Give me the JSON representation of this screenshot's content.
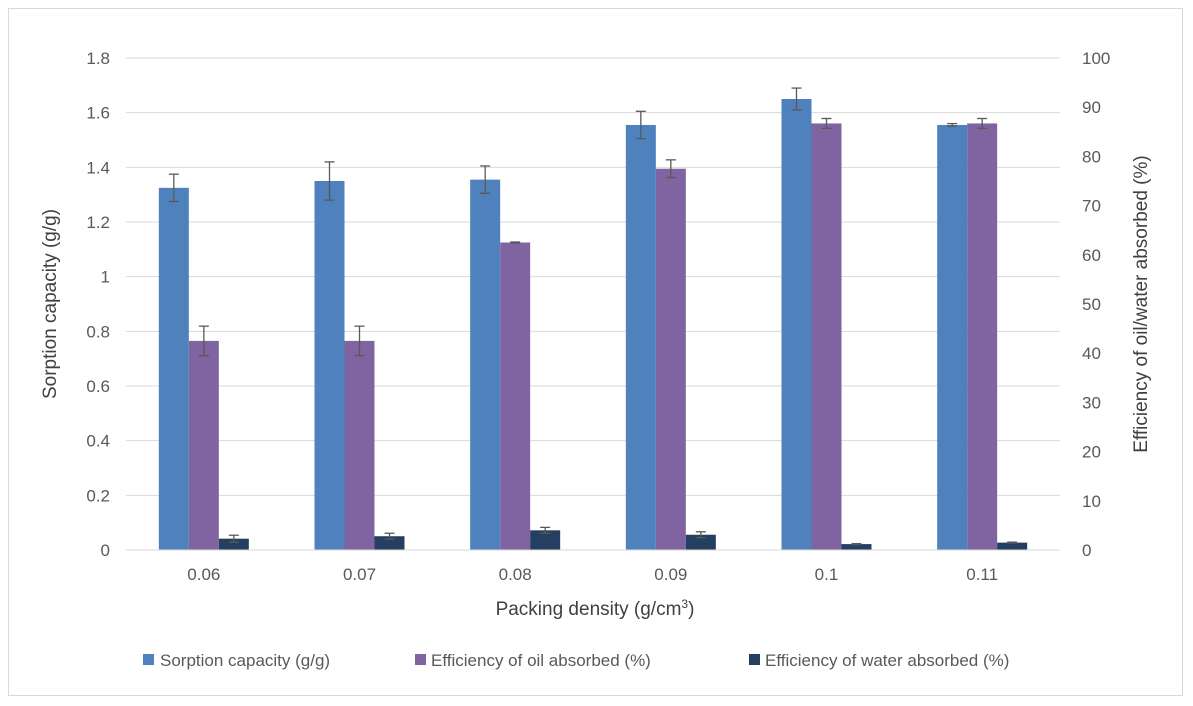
{
  "chart_data": {
    "type": "bar",
    "xlabel_main": "Packing density (g/cm",
    "xlabel_sup": "3",
    "xlabel_end": ")",
    "ylabel_left": "Sorption capacity (g/g)",
    "ylabel_right": "Efficiency of oil/water absorbed (%)",
    "categories": [
      "0.06",
      "0.07",
      "0.08",
      "0.09",
      "0.1",
      "0.11"
    ],
    "ylim_left": [
      0,
      1.8
    ],
    "ylim_right": [
      0,
      100
    ],
    "left_ticks": [
      "0",
      "0.2",
      "0.4",
      "0.6",
      "0.8",
      "1",
      "1.2",
      "1.4",
      "1.6",
      "1.8"
    ],
    "right_ticks": [
      "0",
      "10",
      "20",
      "30",
      "40",
      "50",
      "60",
      "70",
      "80",
      "90",
      "100"
    ],
    "series": [
      {
        "name": "Sorption capacity (g/g)",
        "axis": "left",
        "color": "#4f81bd",
        "values": [
          1.325,
          1.35,
          1.355,
          1.555,
          1.65,
          1.555
        ],
        "errors": [
          0.05,
          0.07,
          0.05,
          0.05,
          0.04,
          0.005
        ]
      },
      {
        "name": "Efficiency of oil absorbed (%)",
        "axis": "right",
        "color": "#8064a2",
        "values": [
          42.5,
          42.5,
          62.5,
          77.5,
          86.7,
          86.7
        ],
        "errors": [
          3.0,
          3.0,
          0.1,
          1.8,
          1.0,
          1.0
        ]
      },
      {
        "name": "Efficiency of water absorbed (%)",
        "axis": "right",
        "color": "#243f60",
        "values": [
          2.3,
          2.8,
          4.0,
          3.1,
          1.2,
          1.5
        ],
        "errors": [
          0.7,
          0.6,
          0.6,
          0.6,
          0.1,
          0.1
        ]
      }
    ]
  }
}
